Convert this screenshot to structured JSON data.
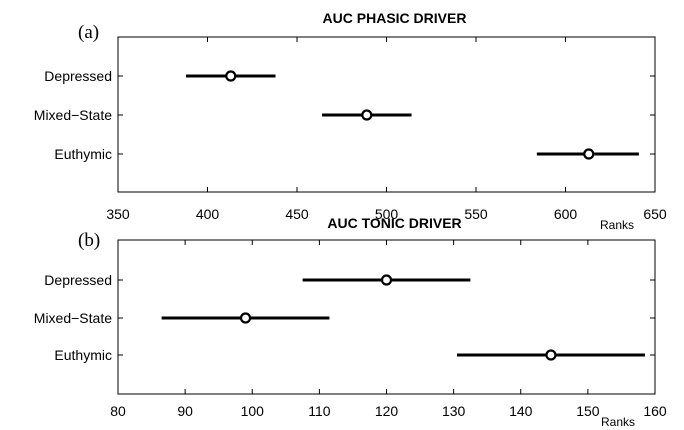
{
  "chart_data": [
    {
      "type": "errorbar",
      "panel_label": "(a)",
      "title": "AUC PHASIC DRIVER",
      "xlabel": "Ranks",
      "xlim": [
        350,
        650
      ],
      "xticks": [
        350,
        400,
        450,
        500,
        550,
        600,
        650
      ],
      "categories": [
        "Depressed",
        "Mixed−State",
        "Euthymic"
      ],
      "means": [
        413,
        489,
        613
      ],
      "lower": [
        388,
        464,
        584
      ],
      "upper": [
        438,
        514,
        641
      ]
    },
    {
      "type": "errorbar",
      "panel_label": "(b)",
      "title": "AUC TONIC DRIVER",
      "xlabel": "Ranks",
      "xlim": [
        80,
        160
      ],
      "xticks": [
        80,
        90,
        100,
        110,
        120,
        130,
        140,
        150,
        160
      ],
      "categories": [
        "Depressed",
        "Mixed−State",
        "Euthymic"
      ],
      "means": [
        120,
        99,
        144.5
      ],
      "lower": [
        107.5,
        86.5,
        130.5
      ],
      "upper": [
        132.5,
        111.5,
        158.5
      ]
    }
  ]
}
